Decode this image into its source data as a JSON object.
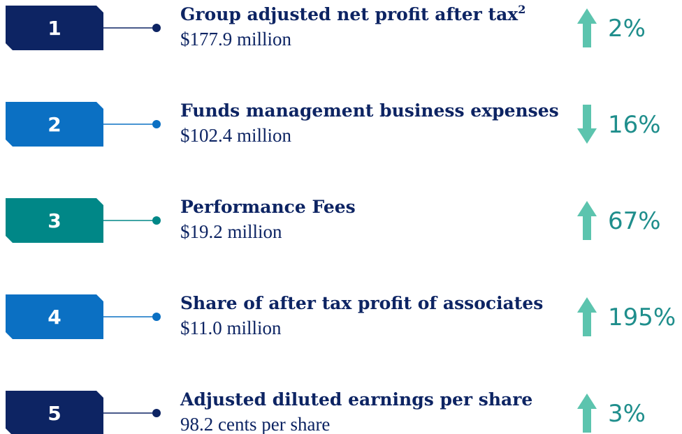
{
  "items": [
    {
      "number": "1",
      "title": "Group adjusted net profit after tax",
      "footnote": "2",
      "value": "$177.9 million",
      "direction": "up",
      "change": "2%",
      "color": "#0d2463"
    },
    {
      "number": "2",
      "title": "Funds management business expenses",
      "value": "$102.4 million",
      "direction": "down",
      "change": "16%",
      "color": "#0b70c3"
    },
    {
      "number": "3",
      "title": "Performance Fees",
      "value": "$19.2 million",
      "direction": "up",
      "change": "67%",
      "color": "#008787"
    },
    {
      "number": "4",
      "title": "Share of after tax profit of associates",
      "value": "$11.0 million",
      "direction": "up",
      "change": "195%",
      "color": "#0b70c3"
    },
    {
      "number": "5",
      "title": "Adjusted diluted earnings per share",
      "value": "98.2 cents per share",
      "direction": "up",
      "change": "3%",
      "color": "#0d2463"
    }
  ]
}
